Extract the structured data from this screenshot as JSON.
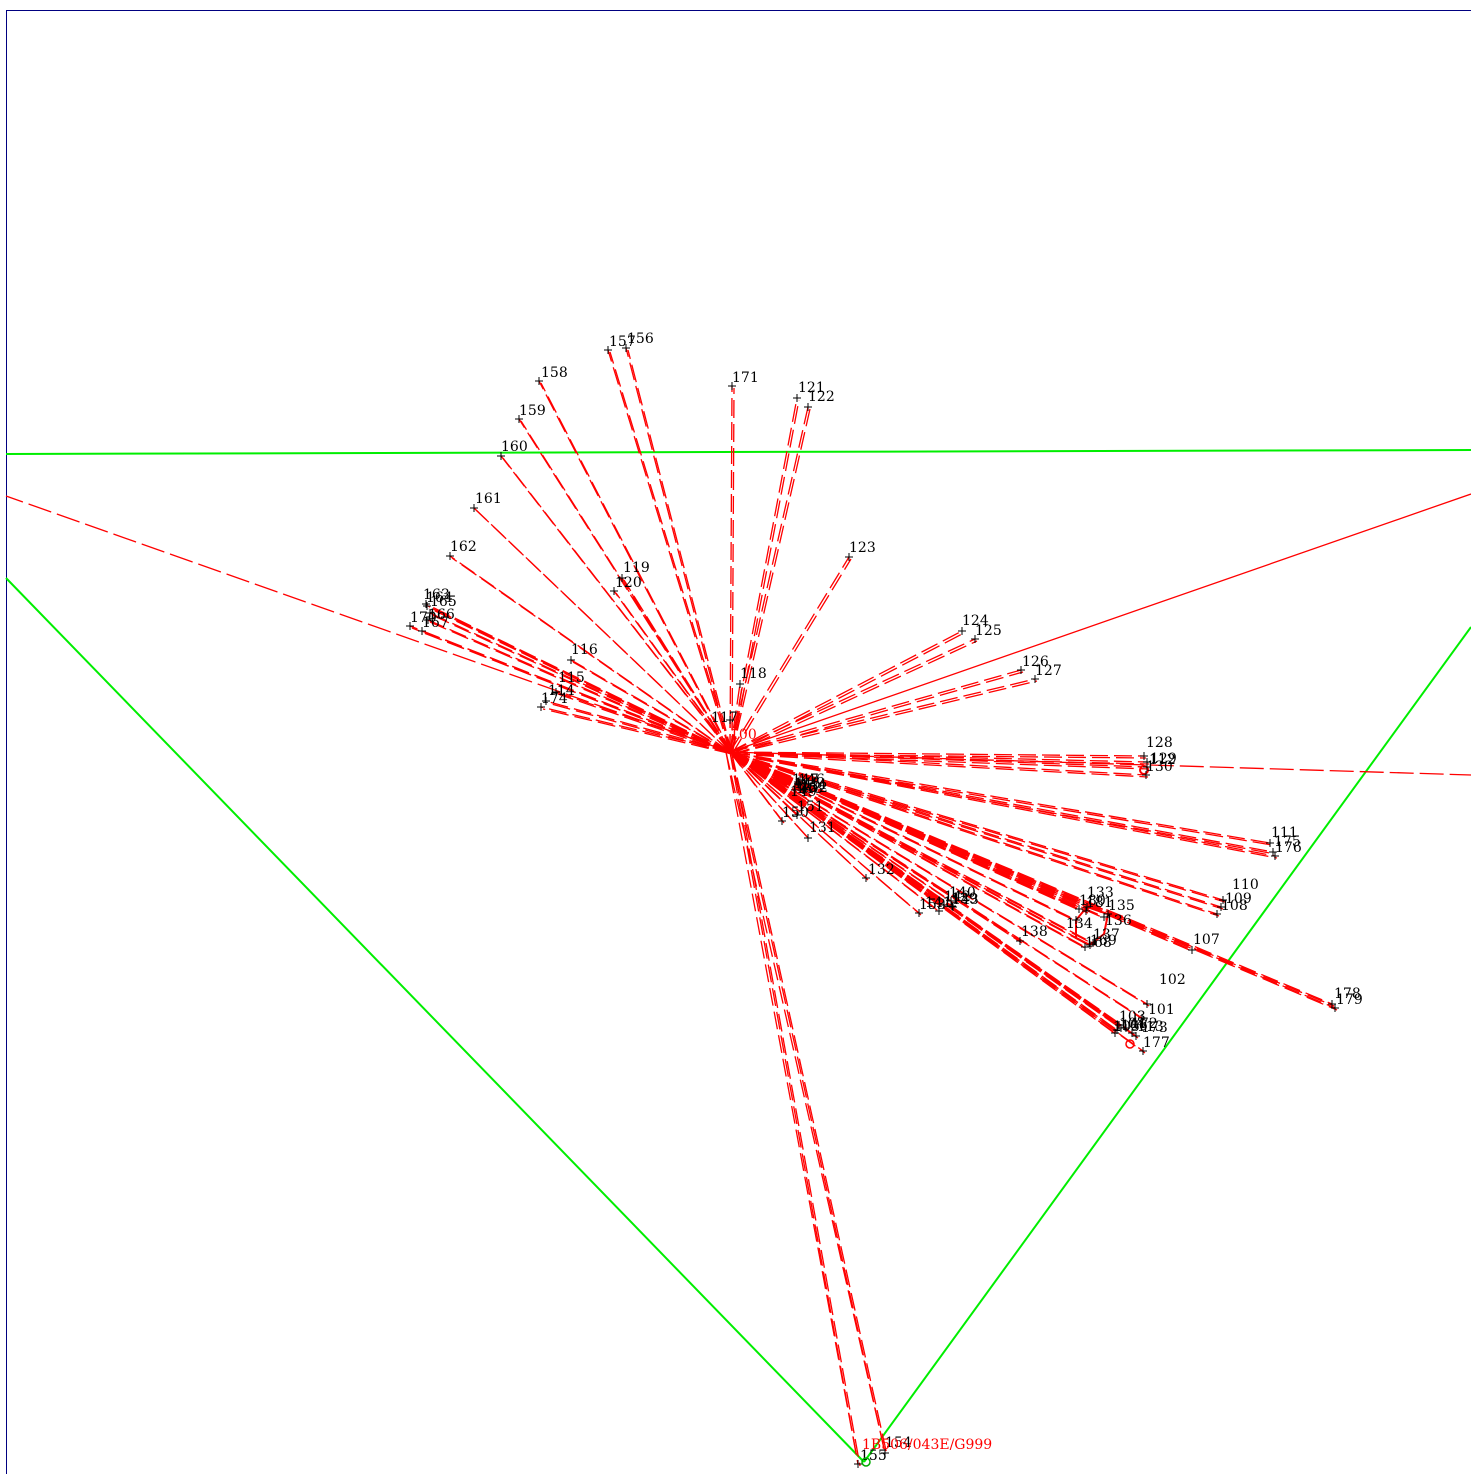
{
  "colors": {
    "frame": "#000080",
    "boundary": "#00ee00",
    "ray": "#ff0000",
    "label": "#000000",
    "origin_label": "#ff0000"
  },
  "origin": {
    "label": "100"
  },
  "station": {
    "label": "1B506/043E/G999",
    "marker_icon": "station-circle-icon"
  },
  "points_label_list": [
    "101",
    "102",
    "103",
    "104",
    "105",
    "106",
    "107",
    "108",
    "109",
    "110",
    "111",
    "112",
    "113",
    "114",
    "115",
    "116",
    "117",
    "118",
    "119",
    "120",
    "121",
    "122",
    "123",
    "124",
    "125",
    "126",
    "127",
    "128",
    "129",
    "130",
    "131",
    "132",
    "133",
    "134",
    "135",
    "136",
    "137",
    "138",
    "139",
    "140",
    "141",
    "142",
    "143",
    "144",
    "145",
    "146",
    "147",
    "148",
    "149",
    "150",
    "151",
    "152",
    "153",
    "154",
    "155",
    "156",
    "157",
    "158",
    "159",
    "160",
    "161",
    "162",
    "163",
    "164",
    "165",
    "166",
    "167",
    "168",
    "169",
    "170",
    "171",
    "172",
    "173",
    "174",
    "175",
    "176",
    "177",
    "178",
    "179",
    "180",
    "181"
  ]
}
